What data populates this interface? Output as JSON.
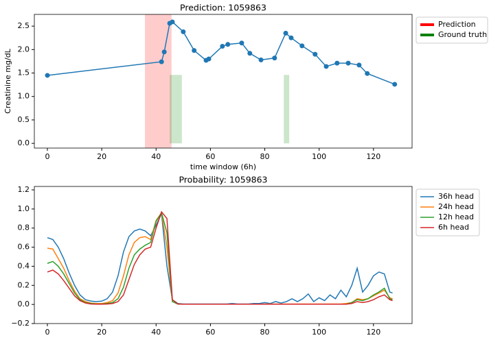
{
  "chart_data": [
    {
      "type": "line",
      "title": "Prediction: 1059863",
      "xlabel": "time window (6h)",
      "ylabel": "Creatinine mg/dL",
      "xlim": [
        -4.8,
        134.2
      ],
      "ylim": [
        -0.1,
        2.75
      ],
      "xticks": [
        0,
        20,
        40,
        60,
        80,
        100,
        120
      ],
      "yticks": [
        {
          "value": 0,
          "label": "0.0"
        },
        0.5,
        {
          "value": 1,
          "label": "1.0"
        },
        1.5,
        {
          "value": 2,
          "label": "2.0"
        },
        2.5
      ],
      "legend": "outside-upper-right",
      "spans": [
        {
          "name": "Prediction",
          "color": "#ff0000",
          "ranges": [
            [
              35.9,
              45.7
            ]
          ]
        },
        {
          "name": "Ground truth",
          "color": "#008000",
          "top": 1.46,
          "ranges": [
            [
              45,
              49.5
            ],
            [
              87,
              89
            ]
          ]
        }
      ],
      "series": [
        {
          "color": "#1f77b4",
          "marker": true,
          "x": [
            0,
            42,
            43,
            45,
            46,
            50,
            54,
            58.4,
            59.4,
            64.4,
            66.4,
            71.5,
            74.5,
            78.6,
            83.6,
            87.7,
            89.7,
            93.7,
            98.5,
            102.6,
            106.6,
            110.7,
            114.7,
            117.7,
            127.8
          ],
          "values": [
            1.45,
            1.74,
            1.95,
            2.56,
            2.59,
            2.38,
            1.98,
            1.77,
            1.8,
            2.07,
            2.11,
            2.14,
            1.92,
            1.78,
            1.82,
            2.35,
            2.25,
            2.08,
            1.9,
            1.64,
            1.71,
            1.71,
            1.67,
            1.49,
            1.26
          ]
        }
      ]
    },
    {
      "type": "line",
      "title": "Probability: 1059863",
      "xlim": [
        -4.8,
        134.2
      ],
      "ylim": [
        -0.2,
        1.236
      ],
      "xticks": [
        0,
        20,
        40,
        60,
        80,
        100,
        120
      ],
      "yticks": [
        {
          "value": -0.2,
          "label": "−0.2"
        },
        {
          "value": 0,
          "label": "0.0"
        },
        0.2,
        0.4,
        0.6,
        0.8,
        {
          "value": 1,
          "label": "1.0"
        },
        1.2
      ],
      "legend": "outside-upper-right",
      "series": [
        {
          "name": "36h head",
          "color": "#1f77b4",
          "x": [
            0,
            2,
            4,
            6,
            8,
            10,
            12,
            14,
            16,
            18,
            20,
            22,
            24,
            26,
            28,
            30,
            32,
            34,
            36,
            38,
            40,
            42,
            44,
            46,
            48,
            50,
            52,
            54,
            56,
            58,
            60,
            62,
            64,
            66,
            68,
            70,
            72,
            74,
            76,
            78,
            80,
            82,
            84,
            86,
            88,
            90,
            92,
            94,
            96,
            98,
            100,
            102,
            104,
            106,
            108,
            110,
            112,
            114,
            116,
            118,
            120,
            122,
            124,
            126,
            127
          ],
          "values": [
            0.7,
            0.68,
            0.6,
            0.48,
            0.33,
            0.2,
            0.1,
            0.05,
            0.035,
            0.03,
            0.035,
            0.06,
            0.13,
            0.3,
            0.55,
            0.71,
            0.77,
            0.79,
            0.77,
            0.72,
            0.83,
            0.95,
            0.4,
            0.05,
            0.01,
            0.005,
            0.005,
            0.005,
            0.005,
            0.005,
            0.005,
            0.005,
            0.005,
            0.005,
            0.01,
            0.005,
            0.005,
            0.005,
            0.01,
            0.01,
            0.02,
            0.01,
            0.03,
            0.015,
            0.03,
            0.06,
            0.03,
            0.06,
            0.11,
            0.03,
            0.07,
            0.04,
            0.1,
            0.06,
            0.15,
            0.08,
            0.2,
            0.38,
            0.13,
            0.2,
            0.3,
            0.34,
            0.32,
            0.13,
            0.12
          ]
        },
        {
          "name": "24h head",
          "color": "#ff7f0e",
          "x": [
            0,
            2,
            4,
            6,
            8,
            10,
            12,
            14,
            16,
            18,
            20,
            22,
            24,
            26,
            28,
            30,
            32,
            34,
            36,
            38,
            40,
            42,
            44,
            46,
            48,
            50,
            52,
            54,
            56,
            58,
            60,
            62,
            64,
            66,
            68,
            70,
            72,
            74,
            76,
            78,
            80,
            82,
            84,
            86,
            88,
            90,
            92,
            94,
            96,
            98,
            100,
            102,
            104,
            106,
            108,
            110,
            112,
            114,
            116,
            118,
            120,
            122,
            124,
            126,
            127
          ],
          "values": [
            0.59,
            0.58,
            0.48,
            0.38,
            0.25,
            0.14,
            0.06,
            0.03,
            0.015,
            0.01,
            0.01,
            0.02,
            0.04,
            0.12,
            0.3,
            0.52,
            0.65,
            0.7,
            0.71,
            0.68,
            0.88,
            0.96,
            0.6,
            0.03,
            0.005,
            0.003,
            0.003,
            0.003,
            0.003,
            0.003,
            0.003,
            0.003,
            0.003,
            0.003,
            0.003,
            0.003,
            0.003,
            0.003,
            0.003,
            0.003,
            0.005,
            0.005,
            0.005,
            0.005,
            0.005,
            0.005,
            0.005,
            0.005,
            0.005,
            0.005,
            0.005,
            0.005,
            0.005,
            0.005,
            0.005,
            0.01,
            0.02,
            0.06,
            0.05,
            0.06,
            0.09,
            0.12,
            0.15,
            0.07,
            0.06
          ]
        },
        {
          "name": "12h head",
          "color": "#2ca02c",
          "x": [
            0,
            2,
            4,
            6,
            8,
            10,
            12,
            14,
            16,
            18,
            20,
            22,
            24,
            26,
            28,
            30,
            32,
            34,
            36,
            38,
            40,
            42,
            44,
            46,
            48,
            50,
            52,
            54,
            56,
            58,
            60,
            62,
            64,
            66,
            68,
            70,
            72,
            74,
            76,
            78,
            80,
            82,
            84,
            86,
            88,
            90,
            92,
            94,
            96,
            98,
            100,
            102,
            104,
            106,
            108,
            110,
            112,
            114,
            116,
            118,
            120,
            122,
            124,
            126,
            127
          ],
          "values": [
            0.43,
            0.45,
            0.4,
            0.32,
            0.22,
            0.12,
            0.05,
            0.02,
            0.01,
            0.005,
            0.005,
            0.01,
            0.02,
            0.06,
            0.18,
            0.38,
            0.52,
            0.58,
            0.62,
            0.65,
            0.87,
            0.96,
            0.75,
            0.03,
            0.005,
            0.003,
            0.003,
            0.003,
            0.003,
            0.003,
            0.003,
            0.003,
            0.003,
            0.003,
            0.003,
            0.003,
            0.003,
            0.003,
            0.003,
            0.003,
            0.003,
            0.003,
            0.003,
            0.003,
            0.003,
            0.003,
            0.003,
            0.003,
            0.003,
            0.003,
            0.003,
            0.003,
            0.003,
            0.003,
            0.003,
            0.003,
            0.02,
            0.05,
            0.04,
            0.06,
            0.1,
            0.13,
            0.17,
            0.06,
            0.05
          ]
        },
        {
          "name": "6h head",
          "color": "#d62728",
          "x": [
            0,
            2,
            4,
            6,
            8,
            10,
            12,
            14,
            16,
            18,
            20,
            22,
            24,
            26,
            28,
            30,
            32,
            34,
            36,
            38,
            40,
            42,
            44,
            46,
            48,
            50,
            52,
            54,
            56,
            58,
            60,
            62,
            64,
            66,
            68,
            70,
            72,
            74,
            76,
            78,
            80,
            82,
            84,
            86,
            88,
            90,
            92,
            94,
            96,
            98,
            100,
            102,
            104,
            106,
            108,
            110,
            112,
            114,
            116,
            118,
            120,
            122,
            124,
            126,
            127
          ],
          "values": [
            0.34,
            0.36,
            0.32,
            0.25,
            0.17,
            0.09,
            0.04,
            0.015,
            0.005,
            0.003,
            0.003,
            0.005,
            0.01,
            0.03,
            0.1,
            0.26,
            0.42,
            0.52,
            0.58,
            0.6,
            0.8,
            0.97,
            0.9,
            0.05,
            0.005,
            0.003,
            0.003,
            0.003,
            0.003,
            0.003,
            0.003,
            0.003,
            0.003,
            0.003,
            0.003,
            0.003,
            0.003,
            0.003,
            0.003,
            0.003,
            0.003,
            0.003,
            0.003,
            0.003,
            0.003,
            0.003,
            0.003,
            0.003,
            0.003,
            0.003,
            0.003,
            0.003,
            0.003,
            0.003,
            0.003,
            0.003,
            0.01,
            0.03,
            0.02,
            0.03,
            0.05,
            0.08,
            0.1,
            0.05,
            0.04
          ]
        }
      ]
    }
  ]
}
